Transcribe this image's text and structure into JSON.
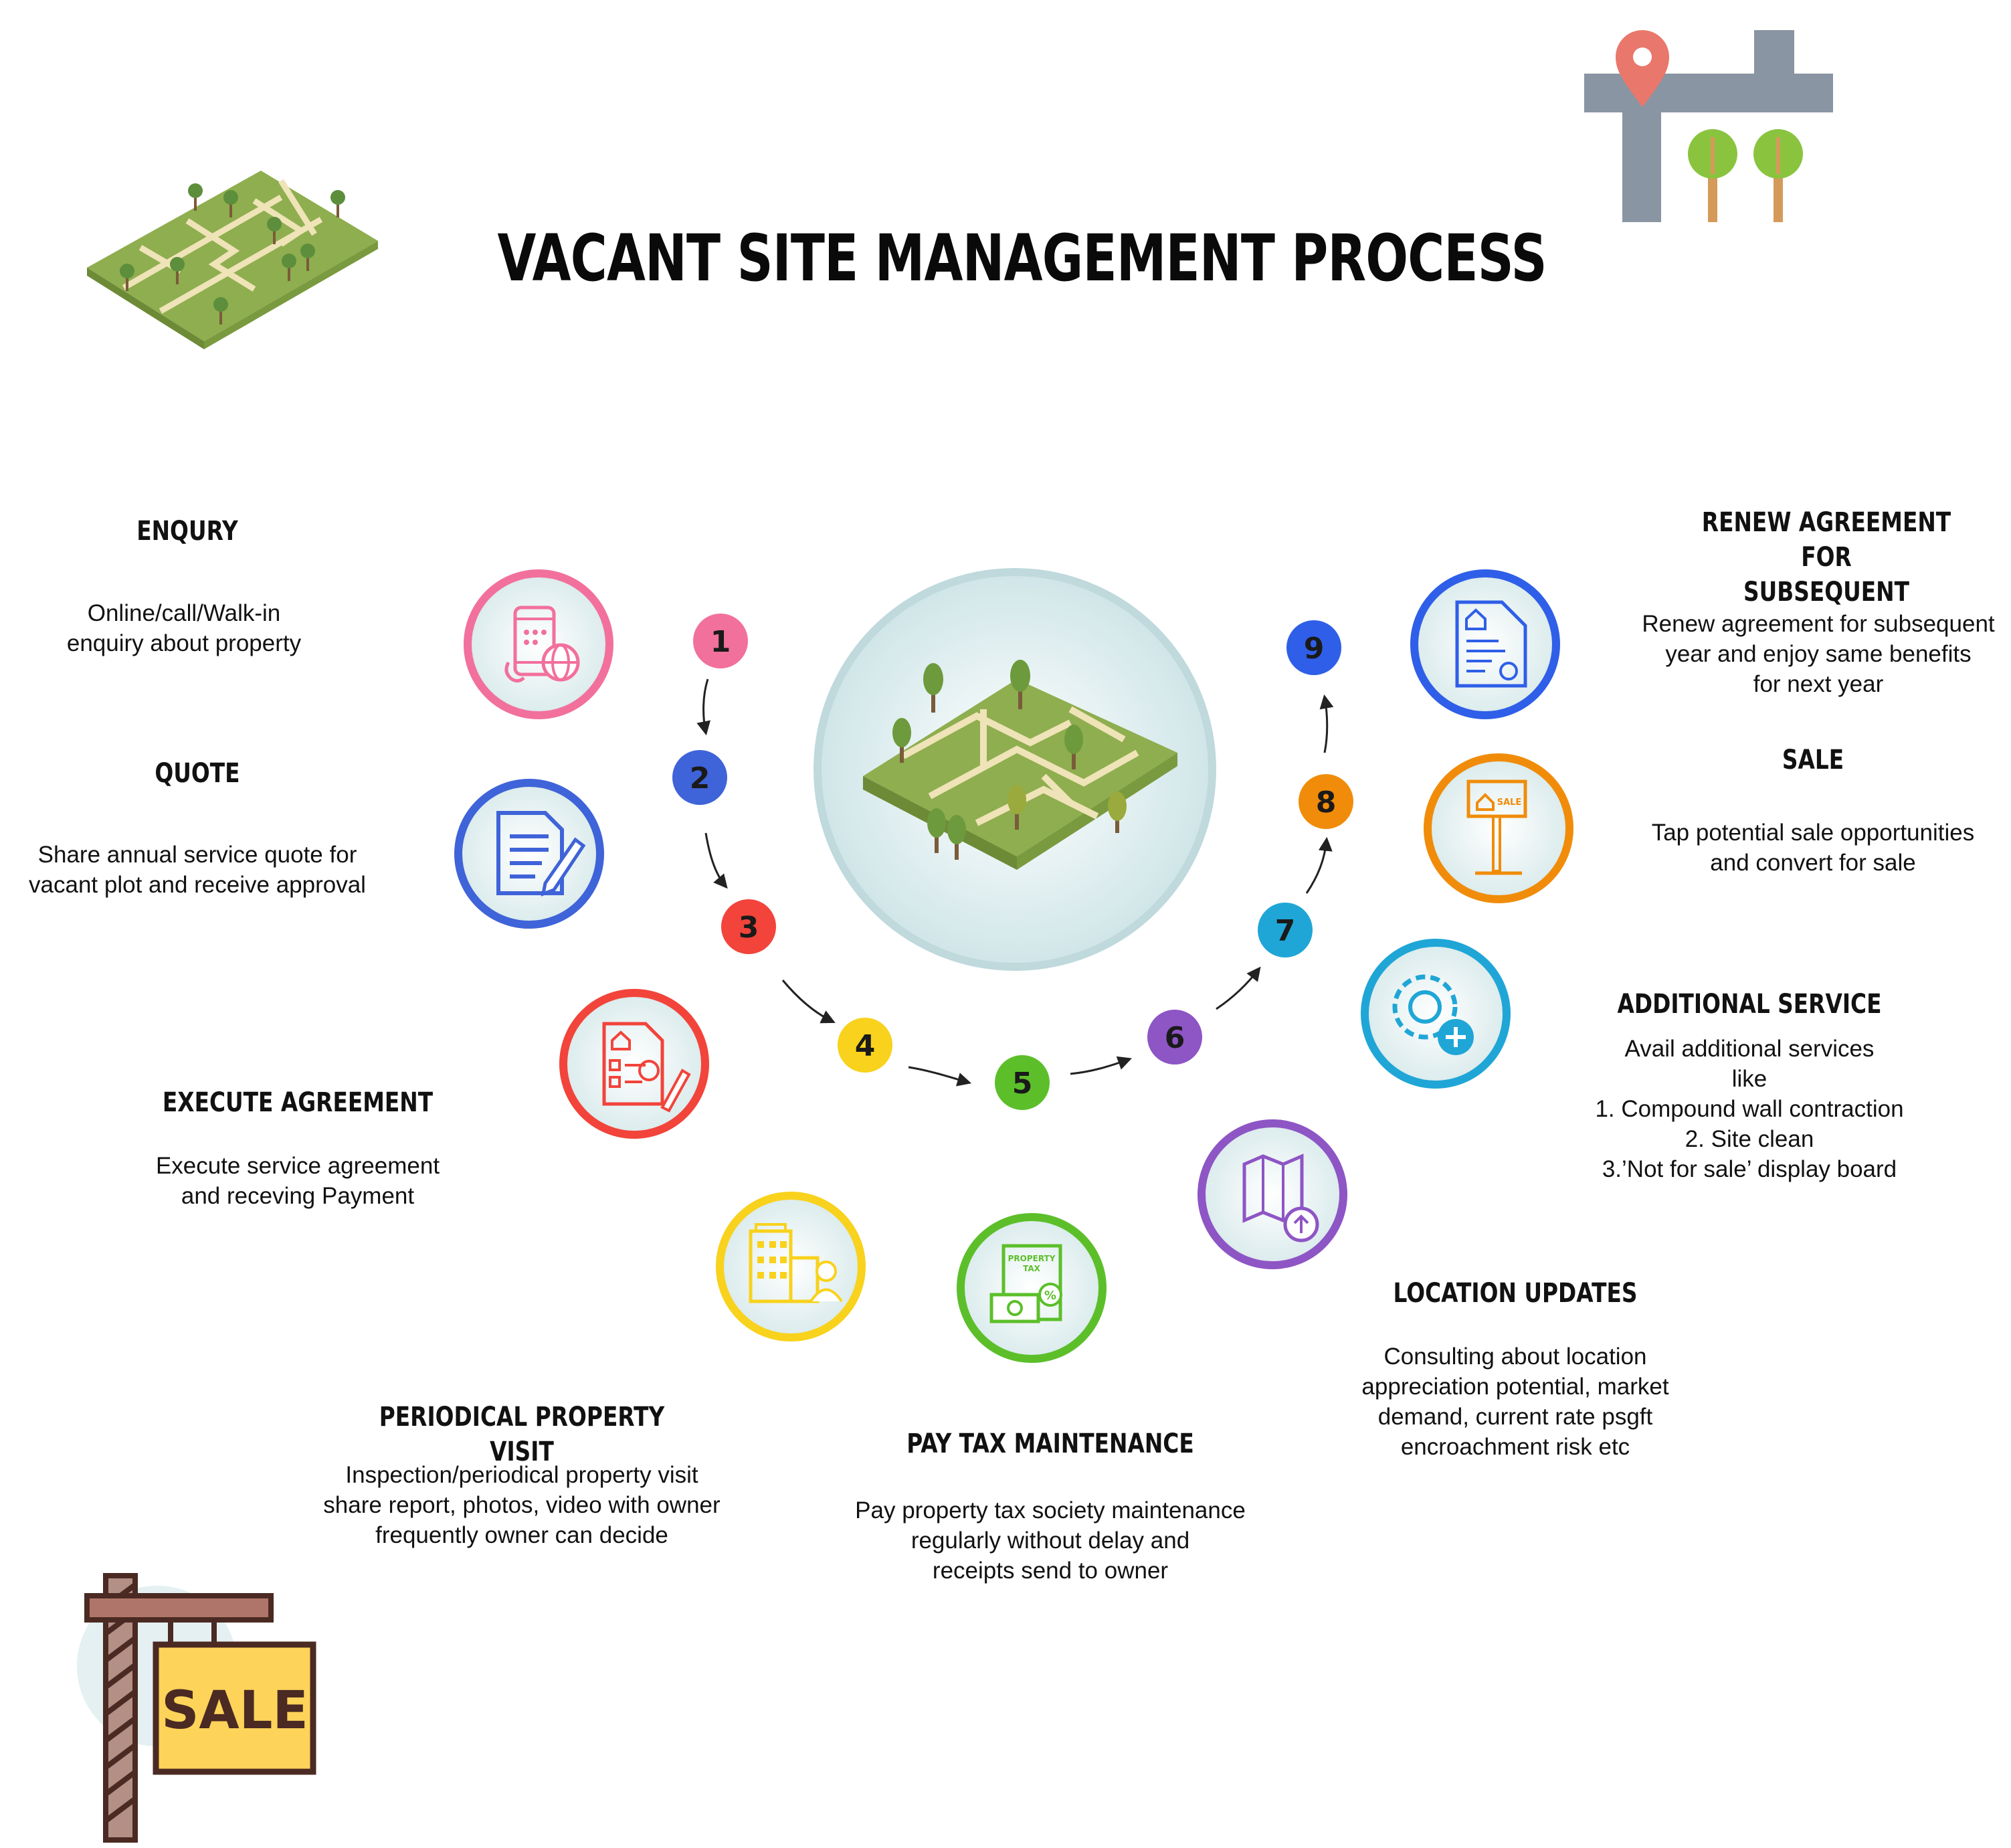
{
  "title": "VACANT SITE MANAGEMENT PROCESS",
  "steps": [
    {
      "number": "1",
      "title": "ENQURY",
      "description": "Online/call/Walk-in\nenquiry about property",
      "icon": "phone-globe-icon",
      "color": "#f2709c"
    },
    {
      "number": "2",
      "title": "QUOTE",
      "description": "Share annual service quote for\nvacant plot and receive approval",
      "icon": "document-pen-icon",
      "color": "#3f63d8"
    },
    {
      "number": "3",
      "title": "EXECUTE AGREEMENT",
      "description": "Execute service agreement\nand receving Payment",
      "icon": "agreement-sign-icon",
      "color": "#f2443b"
    },
    {
      "number": "4",
      "title": "PERIODICAL PROPERTY VISIT",
      "description": "Inspection/periodical property visit\nshare report, photos, video with owner\nfrequently owner can decide",
      "icon": "building-visit-icon",
      "color": "#f8d21c"
    },
    {
      "number": "5",
      "title": "PAY TAX MAINTENANCE",
      "description": "Pay property tax society maintenance\nregularly without delay and\nreceipts send to owner",
      "icon": "property-tax-icon",
      "color": "#5cbf2a"
    },
    {
      "number": "6",
      "title": "LOCATION UPDATES",
      "description": "Consulting about location\nappreciation potential, market\ndemand, current rate psgft\nencroachment risk etc",
      "icon": "map-update-icon",
      "color": "#8e55c5"
    },
    {
      "number": "7",
      "title": "ADDITIONAL SERVICE",
      "description": "Avail additional services\nlike\n1. Compound wall contraction\n2. Site clean\n3.’Not for sale’ display board",
      "icon": "gear-plus-icon",
      "color": "#1fa6d6"
    },
    {
      "number": "8",
      "title": "SALE",
      "description": "Tap potential sale opportunities\nand convert for sale",
      "icon": "sale-board-icon",
      "color": "#f08c0a"
    },
    {
      "number": "9",
      "title": "RENEW AGREEMENT FOR\nSUBSEQUENT",
      "description": "Renew agreement for subsequent\nyear and enjoy same benefits\nfor next year",
      "icon": "renew-document-icon",
      "color": "#2f5fe8"
    }
  ],
  "sale_sign_text": "SALE",
  "property_tax_icon_text": "PROPERTY\nTAX",
  "sale_icon_text": "SALE"
}
